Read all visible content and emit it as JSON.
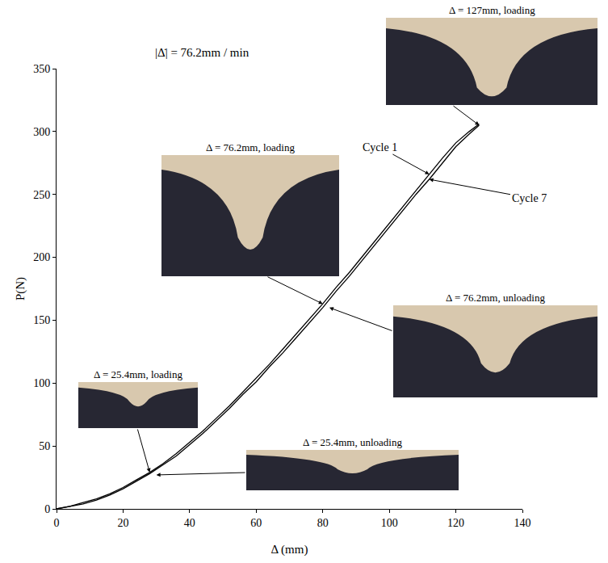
{
  "chart_data": {
    "type": "line",
    "x_label": "Δ (mm)",
    "y_label": "P(N)",
    "xlim": [
      0,
      140
    ],
    "xticks": [
      0,
      20,
      40,
      60,
      80,
      100,
      120,
      140
    ],
    "ylim": [
      0,
      350
    ],
    "yticks": [
      0,
      50,
      100,
      150,
      200,
      250,
      300,
      350
    ],
    "grid": false,
    "x": [
      0,
      4,
      8,
      12,
      16,
      20,
      24,
      28,
      32,
      36,
      40,
      44,
      48,
      52,
      56,
      60,
      64,
      68,
      72,
      76,
      80,
      84,
      88,
      92,
      96,
      100,
      104,
      108,
      112,
      116,
      120,
      124,
      127
    ],
    "series": [
      {
        "name": "Cycle 1",
        "color": "#000000",
        "values": [
          0,
          2,
          5,
          8,
          12,
          17,
          23,
          29,
          36,
          44,
          53,
          62,
          72,
          82,
          93,
          104,
          115,
          127,
          139,
          151,
          163,
          176,
          188,
          201,
          214,
          227,
          240,
          253,
          266,
          279,
          291,
          300,
          306
        ]
      },
      {
        "name": "Cycle 7",
        "color": "#000000",
        "values": [
          0,
          2,
          4,
          7,
          11,
          16,
          22,
          28,
          35,
          42,
          51,
          60,
          70,
          80,
          91,
          101,
          113,
          124,
          136,
          148,
          160,
          173,
          185,
          198,
          211,
          224,
          237,
          250,
          262,
          275,
          288,
          298,
          305
        ]
      }
    ],
    "annotations": [
      {
        "text": "|Δ̇| = 76.2mm / min"
      },
      {
        "text": "Δ = 127mm, loading",
        "x": 127,
        "y": 305
      },
      {
        "text": "Δ = 76.2mm, loading",
        "x": 80,
        "y": 163
      },
      {
        "text": "Δ = 76.2mm, unloading",
        "x": 82,
        "y": 160
      },
      {
        "text": "Δ = 25.4mm, loading",
        "x": 28,
        "y": 29
      },
      {
        "text": "Δ = 25.4mm, unloading",
        "x": 30,
        "y": 27
      }
    ]
  }
}
